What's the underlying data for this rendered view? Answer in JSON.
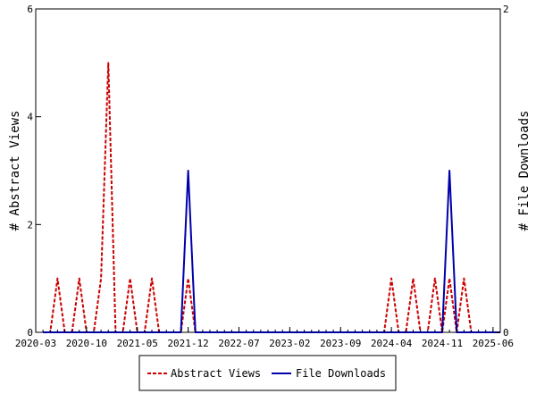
{
  "chart_data": {
    "type": "line",
    "x": [
      "2020-04",
      "2020-05",
      "2020-06",
      "2020-07",
      "2020-08",
      "2020-09",
      "2020-10",
      "2020-11",
      "2020-12",
      "2021-01",
      "2021-02",
      "2021-03",
      "2021-04",
      "2021-05",
      "2021-06",
      "2021-07",
      "2021-08",
      "2021-09",
      "2021-10",
      "2021-11",
      "2021-12",
      "2022-01",
      "2022-02",
      "2022-03",
      "2022-04",
      "2022-05",
      "2022-06",
      "2022-07",
      "2022-08",
      "2022-09",
      "2022-10",
      "2022-11",
      "2022-12",
      "2023-01",
      "2023-02",
      "2023-03",
      "2023-04",
      "2023-05",
      "2023-06",
      "2023-07",
      "2023-08",
      "2023-09",
      "2023-10",
      "2023-11",
      "2023-12",
      "2024-01",
      "2024-02",
      "2024-03",
      "2024-04",
      "2024-05",
      "2024-06",
      "2024-07",
      "2024-08",
      "2024-09",
      "2024-10",
      "2024-11",
      "2024-12",
      "2025-01",
      "2025-02",
      "2025-03",
      "2025-04",
      "2025-05",
      "2025-06",
      "2025-07"
    ],
    "series": [
      {
        "name": "Abstract Views",
        "axis": "left",
        "color": "#cc0000",
        "style": "dashed",
        "values": [
          0,
          0,
          1,
          0,
          0,
          1,
          0,
          0,
          1,
          5,
          0,
          0,
          1,
          0,
          0,
          1,
          0,
          0,
          0,
          0,
          1,
          0,
          0,
          0,
          0,
          0,
          0,
          0,
          0,
          0,
          0,
          0,
          0,
          0,
          0,
          0,
          0,
          0,
          0,
          0,
          0,
          0,
          0,
          0,
          0,
          0,
          0,
          0,
          1,
          0,
          0,
          1,
          0,
          0,
          1,
          0,
          1,
          0,
          1,
          0,
          0,
          0,
          0,
          0
        ]
      },
      {
        "name": "File Downloads",
        "axis": "right",
        "color": "#0000aa",
        "style": "solid",
        "values": [
          0,
          0,
          0,
          0,
          0,
          0,
          0,
          0,
          0,
          0,
          0,
          0,
          0,
          0,
          0,
          0,
          0,
          0,
          0,
          0,
          1,
          0,
          0,
          0,
          0,
          0,
          0,
          0,
          0,
          0,
          0,
          0,
          0,
          0,
          0,
          0,
          0,
          0,
          0,
          0,
          0,
          0,
          0,
          0,
          0,
          0,
          0,
          0,
          0,
          0,
          0,
          0,
          0,
          0,
          0,
          0,
          1,
          0,
          0,
          0,
          0,
          0,
          0,
          0
        ]
      }
    ],
    "x_tick_labels": [
      "2020-03",
      "2020-10",
      "2021-05",
      "2021-12",
      "2022-07",
      "2023-02",
      "2023-09",
      "2024-04",
      "2024-11",
      "2025-06"
    ],
    "x_range": [
      "2020-03",
      "2025-07"
    ],
    "y_left": {
      "label": "# Abstract Views",
      "ylim": [
        0,
        6
      ],
      "ticks": [
        "0",
        "2",
        "4",
        "6"
      ]
    },
    "y_right": {
      "label": "# File Downloads",
      "ylim": [
        0,
        2
      ],
      "ticks": [
        "0",
        "2"
      ]
    },
    "grid": false,
    "legend": {
      "placement": "bottom-center",
      "entries": [
        "Abstract Views",
        "File Downloads"
      ]
    }
  }
}
